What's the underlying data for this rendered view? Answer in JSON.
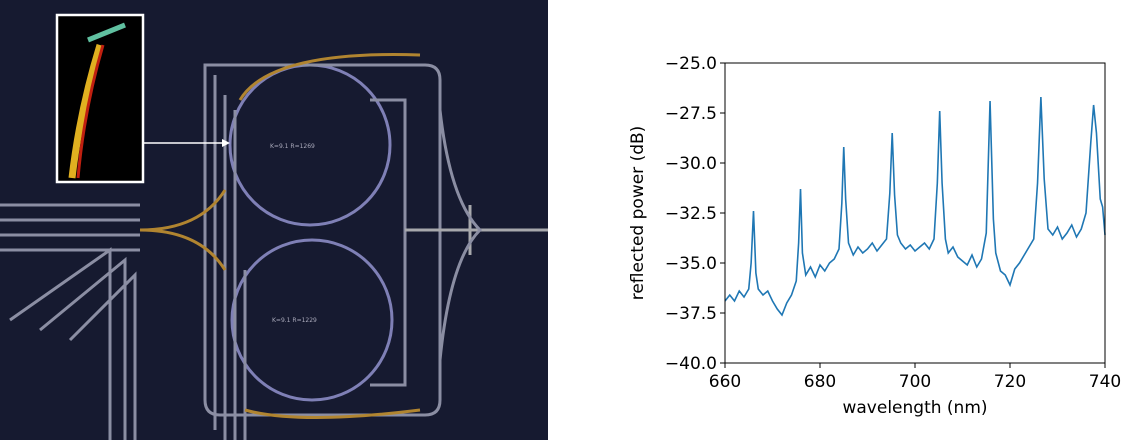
{
  "micrograph": {
    "labels": [
      "K=9.1 R=1269",
      "K=9.1 R=1229"
    ]
  },
  "chart_data": {
    "type": "line",
    "x_label": "wavelength (nm)",
    "y_label": "reflected power (dB)",
    "color": "#1f77b4",
    "x": [
      660,
      661,
      662,
      663,
      664,
      665,
      665.5,
      666,
      666.5,
      667,
      668,
      669,
      670,
      671,
      672,
      673,
      674,
      675,
      675.5,
      675.9,
      676.3,
      677,
      678,
      679,
      680,
      681,
      682,
      683,
      684,
      684.6,
      685,
      685.4,
      686,
      687,
      688,
      689,
      690,
      691,
      692,
      693,
      694,
      694.7,
      695.2,
      695.7,
      696.3,
      697,
      698,
      699,
      700,
      701,
      702,
      703,
      704,
      704.7,
      705.2,
      705.7,
      706.4,
      707,
      708,
      709,
      710,
      711,
      712,
      713,
      714,
      715,
      715.8,
      716.5,
      717,
      718,
      719,
      720,
      721,
      722,
      723,
      724,
      725,
      725.8,
      726.5,
      727.2,
      728,
      729,
      730,
      731,
      732,
      733,
      734,
      735,
      736,
      737,
      737.6,
      738.2,
      739,
      739.5,
      740
    ],
    "values": [
      -36.9,
      -36.6,
      -36.9,
      -36.4,
      -36.7,
      -36.3,
      -35.0,
      -32.4,
      -35.5,
      -36.3,
      -36.6,
      -36.4,
      -36.9,
      -37.3,
      -37.6,
      -37.0,
      -36.6,
      -35.9,
      -34.0,
      -31.3,
      -34.5,
      -35.6,
      -35.2,
      -35.7,
      -35.1,
      -35.4,
      -35.0,
      -34.8,
      -34.3,
      -32.0,
      -29.2,
      -31.8,
      -34.0,
      -34.6,
      -34.2,
      -34.5,
      -34.3,
      -34.0,
      -34.4,
      -34.1,
      -33.8,
      -31.5,
      -28.5,
      -31.6,
      -33.6,
      -34.0,
      -34.3,
      -34.1,
      -34.4,
      -34.2,
      -34.0,
      -34.3,
      -33.8,
      -31.0,
      -27.4,
      -31.0,
      -33.8,
      -34.5,
      -34.2,
      -34.7,
      -34.9,
      -35.1,
      -34.6,
      -35.2,
      -34.8,
      -33.5,
      -26.9,
      -32.8,
      -34.5,
      -35.4,
      -35.6,
      -36.1,
      -35.3,
      -35.0,
      -34.6,
      -34.2,
      -33.8,
      -31.0,
      -26.7,
      -30.8,
      -33.3,
      -33.6,
      -33.2,
      -33.8,
      -33.5,
      -33.1,
      -33.7,
      -33.3,
      -32.5,
      -29.0,
      -27.1,
      -28.5,
      -31.8,
      -32.2,
      -33.6
    ],
    "xlim": [
      660,
      740
    ],
    "xticks": [
      660,
      680,
      700,
      720,
      740
    ],
    "ylim": [
      -40,
      -25
    ],
    "yticks": [
      {
        "value": -40,
        "label": "−40.0"
      },
      {
        "value": -37.5,
        "label": "−37.5"
      },
      {
        "value": -35,
        "label": "−35.0"
      },
      {
        "value": -32.5,
        "label": "−32.5"
      },
      {
        "value": -30,
        "label": "−30.0"
      },
      {
        "value": -27.5,
        "label": "−27.5"
      },
      {
        "value": -25,
        "label": "−25.0"
      }
    ]
  }
}
